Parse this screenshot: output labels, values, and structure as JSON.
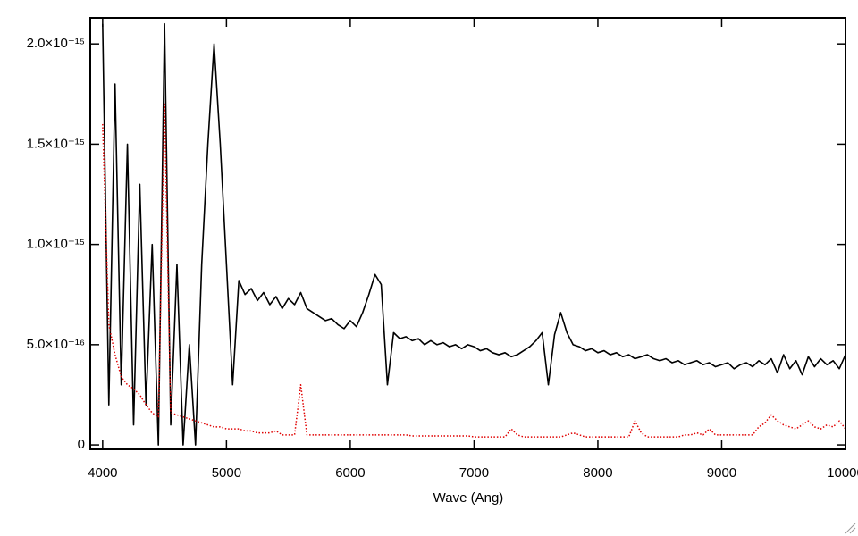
{
  "chart_data": {
    "type": "line",
    "xlabel": "Wave (Ang)",
    "x": [
      4000,
      4050,
      4100,
      4150,
      4200,
      4250,
      4300,
      4350,
      4400,
      4450,
      4500,
      4550,
      4600,
      4650,
      4700,
      4750,
      4800,
      4850,
      4900,
      4950,
      5000,
      5050,
      5100,
      5150,
      5200,
      5250,
      5300,
      5350,
      5400,
      5450,
      5500,
      5550,
      5600,
      5650,
      5700,
      5750,
      5800,
      5850,
      5900,
      5950,
      6000,
      6050,
      6100,
      6150,
      6200,
      6250,
      6300,
      6350,
      6400,
      6450,
      6500,
      6550,
      6600,
      6650,
      6700,
      6750,
      6800,
      6850,
      6900,
      6950,
      7000,
      7050,
      7100,
      7150,
      7200,
      7250,
      7300,
      7350,
      7400,
      7450,
      7500,
      7550,
      7600,
      7650,
      7700,
      7750,
      7800,
      7850,
      7900,
      7950,
      8000,
      8050,
      8100,
      8150,
      8200,
      8250,
      8300,
      8350,
      8400,
      8450,
      8500,
      8550,
      8600,
      8650,
      8700,
      8750,
      8800,
      8850,
      8900,
      8950,
      9000,
      9050,
      9100,
      9150,
      9200,
      9250,
      9300,
      9350,
      9400,
      9450,
      9500,
      9550,
      9600,
      9650,
      9700,
      9750,
      9800,
      9850,
      9900,
      9950,
      10000
    ],
    "series": [
      {
        "color": "#000000",
        "dashed": false,
        "values": [
          2.1e-15,
          2e-16,
          1.8e-15,
          3e-16,
          1.5e-15,
          1e-16,
          1.3e-15,
          2e-16,
          1e-15,
          0,
          2.1e-15,
          1e-16,
          9e-16,
          0,
          5e-16,
          0,
          9e-16,
          1.5e-15,
          2e-15,
          1.5e-15,
          9e-16,
          3e-16,
          8.2e-16,
          7.5e-16,
          7.8e-16,
          7.2e-16,
          7.6e-16,
          7e-16,
          7.4e-16,
          6.8e-16,
          7.3e-16,
          7e-16,
          7.6e-16,
          6.8e-16,
          6.6e-16,
          6.4e-16,
          6.2e-16,
          6.3e-16,
          6e-16,
          5.8e-16,
          6.2e-16,
          5.9e-16,
          6.6e-16,
          7.5e-16,
          8.5e-16,
          8e-16,
          3e-16,
          5.6e-16,
          5.3e-16,
          5.4e-16,
          5.2e-16,
          5.3e-16,
          5e-16,
          5.2e-16,
          5e-16,
          5.1e-16,
          4.9e-16,
          5e-16,
          4.8e-16,
          5e-16,
          4.9e-16,
          4.7e-16,
          4.8e-16,
          4.6e-16,
          4.5e-16,
          4.6e-16,
          4.4e-16,
          4.5e-16,
          4.7e-16,
          4.9e-16,
          5.2e-16,
          5.6e-16,
          3e-16,
          5.5e-16,
          6.6e-16,
          5.6e-16,
          5e-16,
          4.9e-16,
          4.7e-16,
          4.8e-16,
          4.6e-16,
          4.7e-16,
          4.5e-16,
          4.6e-16,
          4.4e-16,
          4.5e-16,
          4.3e-16,
          4.4e-16,
          4.5e-16,
          4.3e-16,
          4.2e-16,
          4.3e-16,
          4.1e-16,
          4.2e-16,
          4e-16,
          4.1e-16,
          4.2e-16,
          4e-16,
          4.1e-16,
          3.9e-16,
          4e-16,
          4.1e-16,
          3.8e-16,
          4e-16,
          4.1e-16,
          3.9e-16,
          4.2e-16,
          4e-16,
          4.3e-16,
          3.6e-16,
          4.5e-16,
          3.8e-16,
          4.2e-16,
          3.5e-16,
          4.4e-16,
          3.9e-16,
          4.3e-16,
          4e-16,
          4.2e-16,
          3.8e-16,
          4.5e-16
        ]
      },
      {
        "color": "#e00000",
        "dashed": true,
        "values": [
          1.6e-15,
          6e-16,
          4.5e-16,
          3.4e-16,
          3e-16,
          2.8e-16,
          2.5e-16,
          2e-16,
          1.6e-16,
          1.4e-16,
          1.7e-15,
          1.6e-16,
          1.5e-16,
          1.4e-16,
          1.3e-16,
          1.2e-16,
          1.1e-16,
          1e-16,
          9e-17,
          9e-17,
          8e-17,
          8e-17,
          8e-17,
          7e-17,
          7e-17,
          6e-17,
          6e-17,
          6e-17,
          7e-17,
          5e-17,
          5e-17,
          5e-17,
          3e-16,
          5e-17,
          5e-17,
          5e-17,
          5e-17,
          5e-17,
          5e-17,
          5e-17,
          5e-17,
          5e-17,
          5e-17,
          5e-17,
          5e-17,
          5e-17,
          5e-17,
          5e-17,
          5e-17,
          5e-17,
          4.5e-17,
          4.5e-17,
          4.5e-17,
          4.5e-17,
          4.5e-17,
          4.5e-17,
          4.5e-17,
          4.5e-17,
          4.5e-17,
          4.5e-17,
          4e-17,
          4e-17,
          4e-17,
          4e-17,
          4e-17,
          4e-17,
          8e-17,
          5e-17,
          4e-17,
          4e-17,
          4e-17,
          4e-17,
          4e-17,
          4e-17,
          4e-17,
          5e-17,
          6e-17,
          5e-17,
          4e-17,
          4e-17,
          4e-17,
          4e-17,
          4e-17,
          4e-17,
          4e-17,
          4e-17,
          1.2e-16,
          6e-17,
          4e-17,
          4e-17,
          4e-17,
          4e-17,
          4e-17,
          4e-17,
          5e-17,
          5e-17,
          6e-17,
          5e-17,
          8e-17,
          5e-17,
          5e-17,
          5e-17,
          5e-17,
          5e-17,
          5e-17,
          5e-17,
          9e-17,
          1.1e-16,
          1.5e-16,
          1.2e-16,
          1e-16,
          9e-17,
          8e-17,
          1e-16,
          1.2e-16,
          9e-17,
          8e-17,
          1e-16,
          9e-17,
          1.2e-16,
          8e-17
        ]
      }
    ],
    "xlim": [
      3900,
      10000
    ],
    "xticks": [
      4000,
      5000,
      6000,
      7000,
      8000,
      9000,
      10000
    ],
    "ylim": [
      -2.2e-17,
      2.13e-15
    ],
    "yticks": [
      0,
      {
        "value": 5e-16,
        "label": "5.0×10⁻¹⁶"
      },
      {
        "value": 1e-15,
        "label": "1.0×10⁻¹⁵"
      },
      {
        "value": 1.5e-15,
        "label": "1.5×10⁻¹⁵"
      },
      {
        "value": 2e-15,
        "label": "2.0×10⁻¹⁵"
      }
    ]
  }
}
